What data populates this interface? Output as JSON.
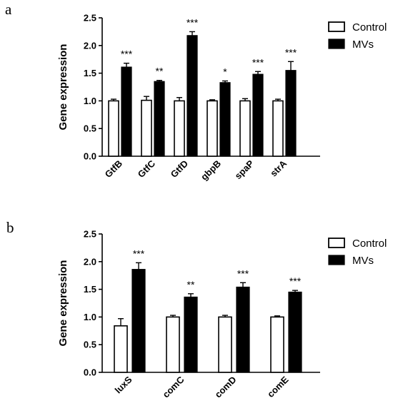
{
  "colors": {
    "control": "#ffffff",
    "mvs": "#000000",
    "axis": "#000000"
  },
  "chart_data": [
    {
      "type": "bar",
      "panel": "a",
      "ylabel": "Gene expression",
      "ylim": [
        0,
        2.5
      ],
      "yticks": [
        0.0,
        0.5,
        1.0,
        1.5,
        2.0,
        2.5
      ],
      "ytick_labels": [
        "0.0",
        "0.5",
        "1.0",
        "1.5",
        "2.0",
        "2.5"
      ],
      "categories": [
        "GtfB",
        "GtfC",
        "GtfD",
        "gbpB",
        "spaP",
        "strA"
      ],
      "category_label_rotation": "rotated -45°",
      "legend": {
        "placement": "top-right",
        "entries": [
          "Control",
          "MVs"
        ]
      },
      "series": [
        {
          "name": "Control",
          "values": [
            1.0,
            1.01,
            1.0,
            1.0,
            1.0,
            1.0
          ],
          "errors": [
            0.03,
            0.07,
            0.06,
            0.02,
            0.04,
            0.03
          ]
        },
        {
          "name": "MVs",
          "values": [
            1.61,
            1.35,
            2.18,
            1.33,
            1.48,
            1.55
          ],
          "errors": [
            0.07,
            0.02,
            0.07,
            0.03,
            0.05,
            0.16
          ]
        }
      ],
      "significance": [
        "***",
        "**",
        "***",
        "*",
        "***",
        "***"
      ]
    },
    {
      "type": "bar",
      "panel": "b",
      "ylabel": "Gene expression",
      "ylim": [
        0,
        2.5
      ],
      "yticks": [
        0.0,
        0.5,
        1.0,
        1.5,
        2.0,
        2.5
      ],
      "ytick_labels": [
        "0.0",
        "0.5",
        "1.0",
        "1.5",
        "2.0",
        "2.5"
      ],
      "categories": [
        "luxS",
        "comC",
        "comD",
        "comE"
      ],
      "category_label_rotation": "rotated -45°",
      "legend": {
        "placement": "top-right",
        "entries": [
          "Control",
          "MVs"
        ]
      },
      "series": [
        {
          "name": "Control",
          "values": [
            0.84,
            1.0,
            1.0,
            1.0
          ],
          "errors": [
            0.13,
            0.03,
            0.03,
            0.02
          ]
        },
        {
          "name": "MVs",
          "values": [
            1.86,
            1.36,
            1.54,
            1.45
          ],
          "errors": [
            0.12,
            0.06,
            0.08,
            0.03
          ]
        }
      ],
      "significance": [
        "***",
        "**",
        "***",
        "***"
      ]
    }
  ]
}
